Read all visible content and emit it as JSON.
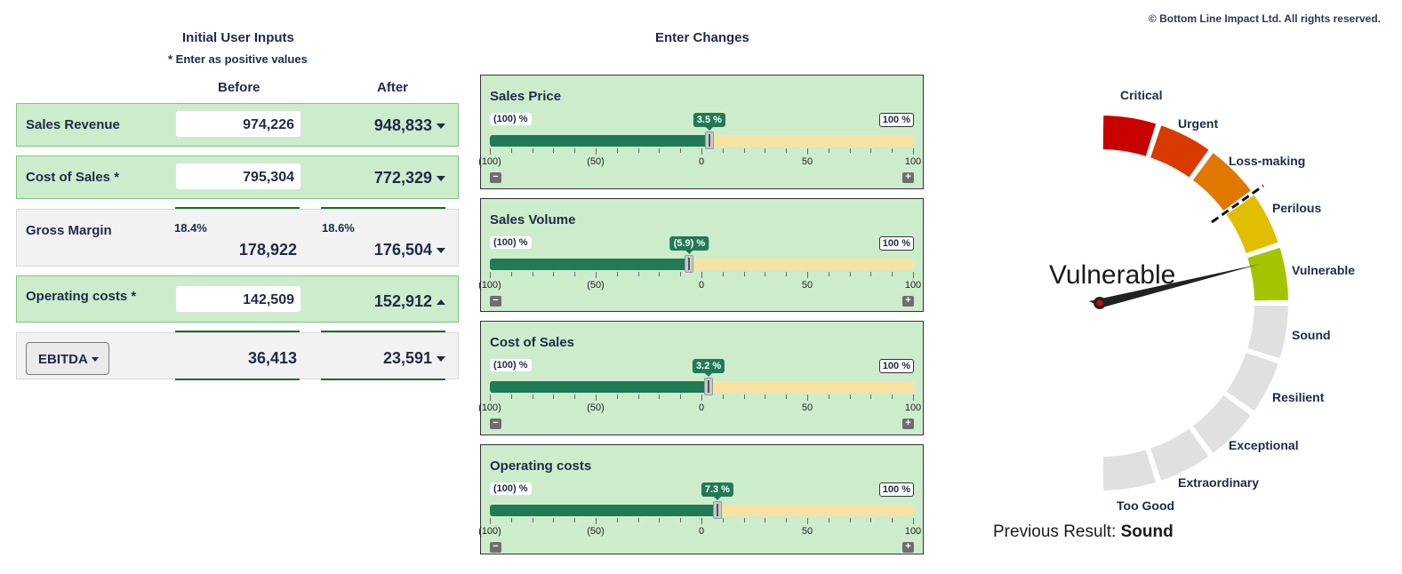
{
  "copyright": "© Bottom Line Impact Ltd. All rights reserved.",
  "left": {
    "title": "Initial User Inputs",
    "note": "* Enter as positive values",
    "col_before": "Before",
    "col_after": "After",
    "rows": [
      {
        "label": "Sales Revenue",
        "before": "974,226",
        "after": "948,833",
        "trend": "down"
      },
      {
        "label": "Cost of Sales *",
        "before": "795,304",
        "after": "772,329",
        "trend": "down"
      },
      {
        "label": "Gross Margin",
        "before_pct": "18.4%",
        "before": "178,922",
        "after_pct": "18.6%",
        "after": "176,504",
        "trend": "down"
      },
      {
        "label": "Operating costs *",
        "before": "142,509",
        "after": "152,912",
        "trend": "up"
      },
      {
        "label": "EBITDA",
        "before": "36,413",
        "after": "23,591",
        "trend": "down"
      }
    ]
  },
  "middle": {
    "title": "Enter Changes",
    "min_label": "(100) %",
    "max_label": "100 %",
    "tick_labels": [
      "(100)",
      "(50)",
      "0",
      "50",
      "100"
    ],
    "minus": "−",
    "plus": "+",
    "sliders": [
      {
        "title": "Sales Price",
        "value": 3.5,
        "display": "3.5 %"
      },
      {
        "title": "Sales Volume",
        "value": -5.9,
        "display": "(5.9) %"
      },
      {
        "title": "Cost of Sales",
        "value": 3.2,
        "display": "3.2 %"
      },
      {
        "title": "Operating costs",
        "value": 7.3,
        "display": "7.3 %"
      }
    ]
  },
  "gauge": {
    "result": "Vulnerable",
    "segments": [
      {
        "label": "Critical",
        "color": "#c80000",
        "active": true
      },
      {
        "label": "Urgent",
        "color": "#d93a00",
        "active": true
      },
      {
        "label": "Loss-making",
        "color": "#e07800",
        "active": true
      },
      {
        "label": "Perilous",
        "color": "#e2be00",
        "active": true
      },
      {
        "label": "Vulnerable",
        "color": "#a4c400",
        "active": true
      },
      {
        "label": "Sound",
        "color": "#e0e0e0",
        "active": false
      },
      {
        "label": "Resilient",
        "color": "#e0e0e0",
        "active": false
      },
      {
        "label": "Exceptional",
        "color": "#e0e0e0",
        "active": false
      },
      {
        "label": "Extraordinary",
        "color": "#e0e0e0",
        "active": false
      },
      {
        "label": "Too Good",
        "color": "#e0e0e0",
        "active": false
      }
    ],
    "previous_label": "Previous Result:",
    "previous_value": "Sound"
  }
}
